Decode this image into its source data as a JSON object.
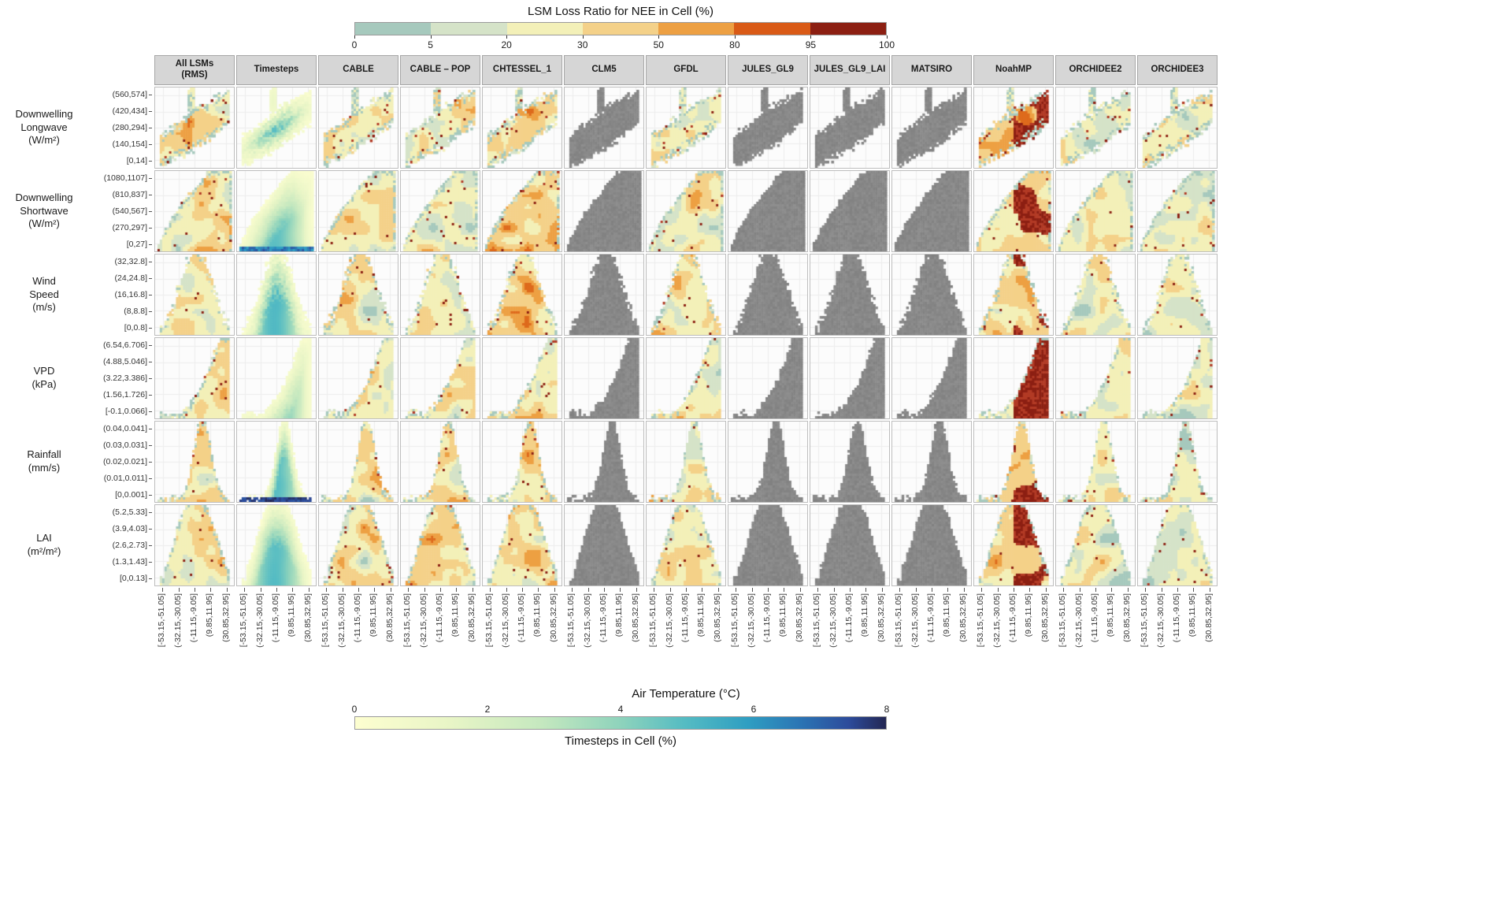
{
  "chart_data": {
    "type": "heatmap",
    "description": "Faceted 2D-binned heatmaps of LSM loss ratio for NEE, per meteorological driver (rows) and land surface model (columns), versus air temperature bins.",
    "top_legend": {
      "title": "LSM Loss Ratio for NEE in Cell (%)",
      "tick_labels": [
        "0",
        "5",
        "20",
        "30",
        "50",
        "80",
        "95",
        "100"
      ],
      "bin_colors": [
        "#a6c9bd",
        "#d5e3c8",
        "#f3f0b8",
        "#f4d189",
        "#eda043",
        "#d95a16",
        "#8c1f12"
      ]
    },
    "bottom_legend": {
      "title": "Timesteps in Cell (%)",
      "tick_labels": [
        "0",
        "2",
        "4",
        "6",
        "8"
      ],
      "gradient_stops": [
        {
          "pos": 0,
          "color": "#fdfed0"
        },
        {
          "pos": 0.18,
          "color": "#e8f5c6"
        },
        {
          "pos": 0.35,
          "color": "#c5e8bf"
        },
        {
          "pos": 0.5,
          "color": "#8ed3bc"
        },
        {
          "pos": 0.62,
          "color": "#55bcc3"
        },
        {
          "pos": 0.74,
          "color": "#2f9ec2"
        },
        {
          "pos": 0.84,
          "color": "#2b74b4"
        },
        {
          "pos": 0.93,
          "color": "#2c4b9b"
        },
        {
          "pos": 1,
          "color": "#232753"
        }
      ]
    },
    "x_axis": {
      "title": "Air Temperature (°C)",
      "tick_labels": [
        "[-53.15,-51.05]",
        "(-32.15,-30.05]",
        "(-11.15,-9.05]",
        "(9.85,11.95]",
        "(30.85,32.95]"
      ]
    },
    "columns": [
      {
        "label": "All LSMs\n(RMS)",
        "style": "rms"
      },
      {
        "label": "Timesteps",
        "style": "timesteps"
      },
      {
        "label": "CABLE",
        "style": "loss"
      },
      {
        "label": "CABLE – POP",
        "style": "loss"
      },
      {
        "label": "CHTESSEL_1",
        "style": "hot"
      },
      {
        "label": "CLM5",
        "style": "gray"
      },
      {
        "label": "GFDL",
        "style": "loss"
      },
      {
        "label": "JULES_GL9",
        "style": "gray"
      },
      {
        "label": "JULES_GL9_LAI",
        "style": "gray"
      },
      {
        "label": "MATSIRO",
        "style": "gray"
      },
      {
        "label": "NoahMP",
        "style": "noahmp"
      },
      {
        "label": "ORCHIDEE2",
        "style": "soft"
      },
      {
        "label": "ORCHIDEE3",
        "style": "soft"
      }
    ],
    "rows": [
      {
        "label": "Downwelling\nLongwave\n(W/m²)",
        "shape": "diagonal",
        "y_tick_labels": [
          "(560,574]",
          "(420,434]",
          "(280,294]",
          "(140,154]",
          "[0,14]"
        ]
      },
      {
        "label": "Downwelling\nShortwave\n(W/m²)",
        "shape": "dome",
        "y_tick_labels": [
          "(1080,1107]",
          "(810,837]",
          "(540,567]",
          "(270,297]",
          "[0,27]"
        ]
      },
      {
        "label": "Wind\nSpeed\n(m/s)",
        "shape": "peak",
        "y_tick_labels": [
          "(32,32.8]",
          "(24,24.8]",
          "(16,16.8]",
          "(8,8.8]",
          "[0,0.8]"
        ]
      },
      {
        "label": "VPD\n(kPa)",
        "shape": "curve",
        "y_tick_labels": [
          "(6.54,6.706]",
          "(4.88,5.046]",
          "(3.22,3.386]",
          "(1.56,1.726]",
          "[-0.1,0.066]"
        ]
      },
      {
        "label": "Rainfall\n(mm/s)",
        "shape": "spike",
        "y_tick_labels": [
          "(0.04,0.041]",
          "(0.03,0.031]",
          "(0.02,0.021]",
          "(0.01,0.011]",
          "[0,0.001]"
        ]
      },
      {
        "label": "LAI\n(m²/m²)",
        "shape": "column",
        "y_tick_labels": [
          "(5.2,5.33]",
          "(3.9,4.03]",
          "(2.6,2.73]",
          "(1.3,1.43]",
          "[0,0.13]"
        ]
      }
    ],
    "grayed_columns": [
      "CLM5",
      "JULES_GL9",
      "JULES_GL9_LAI",
      "MATSIRO"
    ],
    "cell_palette": {
      "teal": "#a6c9bd",
      "green": "#d5e3c8",
      "pale_yellow": "#f3f0b8",
      "sand": "#f4d189",
      "orange": "#eda043",
      "dark_orange": "#de6a1c",
      "red": "#b23a25",
      "dark_red": "#8c1f12",
      "gray": "#888888"
    }
  }
}
